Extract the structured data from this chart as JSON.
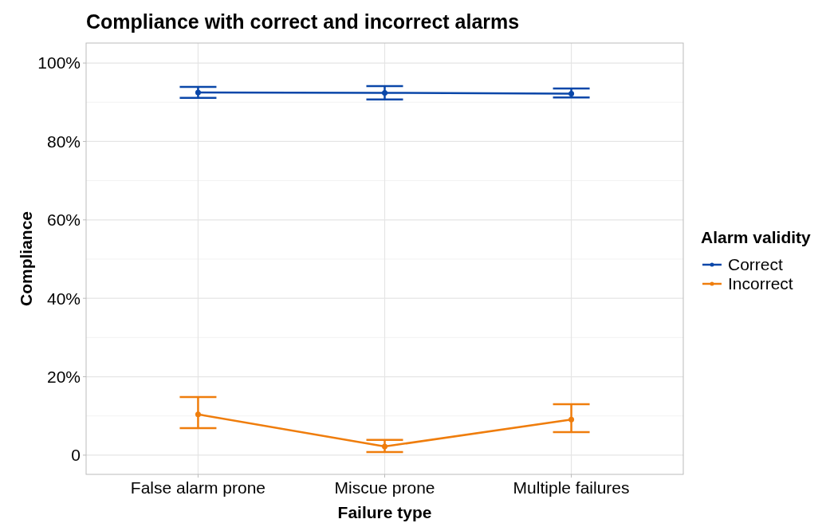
{
  "chart_data": {
    "type": "line",
    "title": "Compliance with correct and incorrect alarms",
    "xlabel": "Failure type",
    "ylabel": "Compliance",
    "legend_title": "Alarm validity",
    "categories": [
      "False alarm prone",
      "Miscue prone",
      "Multiple failures"
    ],
    "series": [
      {
        "name": "Correct",
        "color": "#0a47a9",
        "values": [
          92.5,
          92.4,
          92.2
        ],
        "errors": [
          [
            91.1,
            93.9
          ],
          [
            90.7,
            94.1
          ],
          [
            91.2,
            93.5
          ]
        ]
      },
      {
        "name": "Incorrect",
        "color": "#ef7d0c",
        "values": [
          10.4,
          2.2,
          9.1
        ],
        "errors": [
          [
            6.9,
            14.8
          ],
          [
            0.8,
            3.9
          ],
          [
            5.9,
            13.0
          ]
        ]
      }
    ],
    "ylim": [
      -4.9,
      105.1
    ],
    "yticks": [
      0,
      {
        "value": 20,
        "label": "20%"
      },
      {
        "value": 40,
        "label": "40%"
      },
      {
        "value": 60,
        "label": "60%"
      },
      {
        "value": 80,
        "label": "80%"
      },
      {
        "value": 100,
        "label": "100%"
      }
    ],
    "grid": true,
    "legend": "right",
    "marker": "circle",
    "line_style": "solid"
  }
}
